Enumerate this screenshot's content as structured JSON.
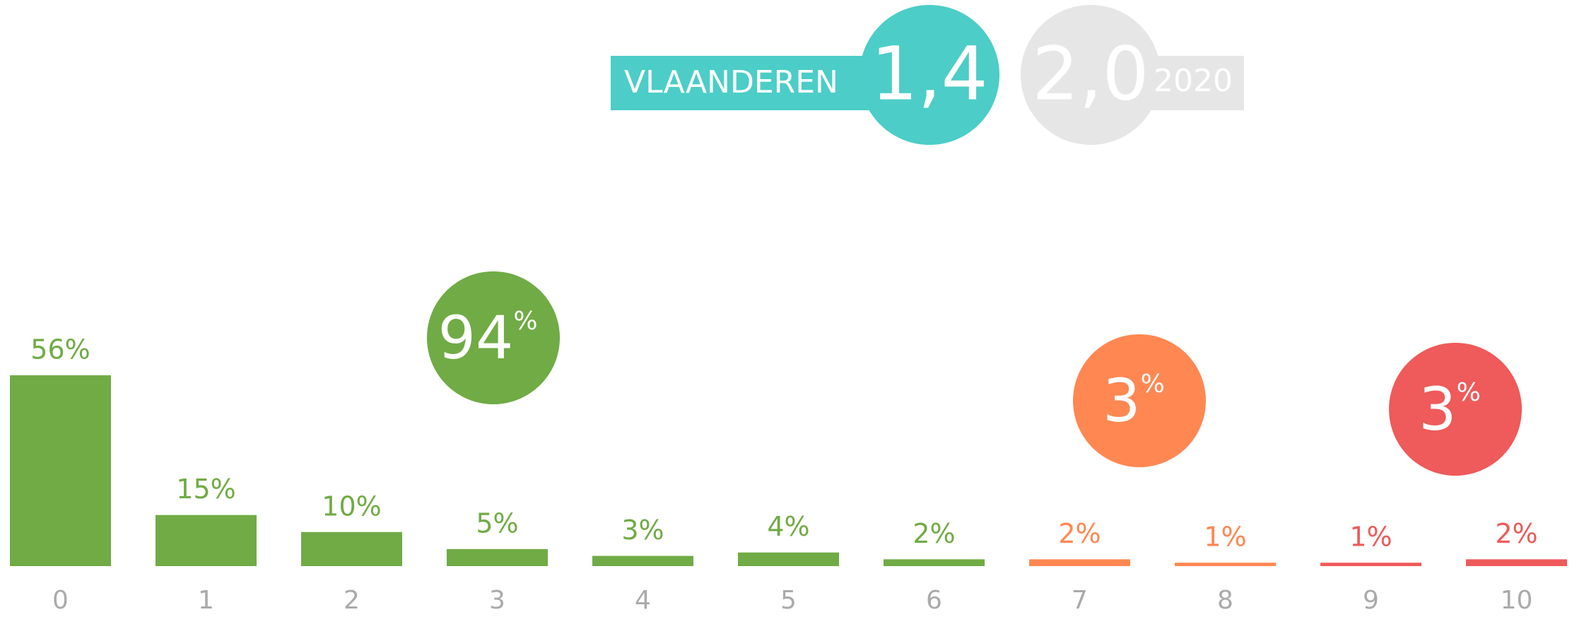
{
  "header": {
    "region": "VLAANDEREN",
    "score": {
      "value": 1.4,
      "label": "1,4",
      "color": "#4ccdc7"
    },
    "previous": {
      "value": 2.0,
      "label": "2,0",
      "year": "2020",
      "color": "#e6e6e6"
    }
  },
  "chart_data": {
    "type": "bar",
    "categories": [
      "0",
      "1",
      "2",
      "3",
      "4",
      "5",
      "6",
      "7",
      "8",
      "9",
      "10"
    ],
    "values": [
      56,
      15,
      10,
      5,
      3,
      4,
      2,
      2,
      1,
      1,
      2
    ],
    "value_labels": [
      "56%",
      "15%",
      "10%",
      "5%",
      "3%",
      "4%",
      "2%",
      "2%",
      "1%",
      "1%",
      "2%"
    ],
    "colors": [
      "#70ab45",
      "#70ab45",
      "#70ab45",
      "#70ab45",
      "#70ab45",
      "#70ab45",
      "#70ab45",
      "#ff8752",
      "#ff8752",
      "#ef5a5a",
      "#ef5a5a"
    ],
    "groups": [
      {
        "value": 94,
        "unit": "%",
        "color": "#70ab45"
      },
      {
        "value": 3,
        "unit": "%",
        "color": "#ff8752"
      },
      {
        "value": 3,
        "unit": "%",
        "color": "#ef5a5a"
      }
    ]
  }
}
